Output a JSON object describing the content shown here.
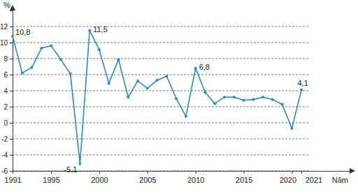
{
  "chart_data": {
    "type": "line",
    "x": [
      1991,
      1992,
      1993,
      1994,
      1995,
      1996,
      1997,
      1998,
      1999,
      2000,
      2001,
      2002,
      2003,
      2004,
      2005,
      2006,
      2007,
      2008,
      2009,
      2010,
      2011,
      2012,
      2013,
      2014,
      2015,
      2016,
      2017,
      2018,
      2019,
      2020,
      2021
    ],
    "values": [
      10.8,
      6.2,
      6.9,
      9.3,
      9.6,
      7.9,
      6.1,
      -5.1,
      11.5,
      9.1,
      4.9,
      7.9,
      3.2,
      5.2,
      4.3,
      5.3,
      5.8,
      3.0,
      0.8,
      6.8,
      3.8,
      2.4,
      3.2,
      3.2,
      2.8,
      2.9,
      3.2,
      2.9,
      2.3,
      -0.7,
      4.1
    ],
    "value_labels": [
      "10,8",
      null,
      null,
      null,
      null,
      null,
      null,
      "-5,1",
      "11,5",
      null,
      null,
      null,
      null,
      null,
      null,
      null,
      null,
      null,
      null,
      "6,8",
      null,
      null,
      null,
      null,
      null,
      null,
      null,
      null,
      null,
      null,
      "4,1"
    ],
    "xlim": [
      1991,
      2026
    ],
    "xticks": [
      1991,
      1995,
      2000,
      2005,
      2010,
      2015,
      2020,
      2021
    ],
    "ylim": [
      -6,
      14
    ],
    "yticks": [
      -6,
      -4,
      -2,
      0,
      2,
      4,
      6,
      8,
      10,
      12
    ],
    "xlabel": "Năm",
    "ylabel": "%",
    "color": "#2f8ac4",
    "marker": "circle",
    "grid": true
  }
}
